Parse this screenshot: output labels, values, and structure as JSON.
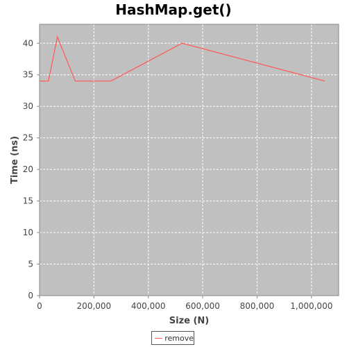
{
  "chart_data": {
    "type": "line",
    "title": "HashMap.get()",
    "xlabel": "Size (N)",
    "ylabel": "Time (ns)",
    "xlim": [
      0,
      1100000
    ],
    "ylim": [
      0,
      43
    ],
    "x_ticks": [
      0,
      200000,
      400000,
      600000,
      800000,
      1000000
    ],
    "x_tick_labels": [
      "0",
      "200,000",
      "400,000",
      "600,000",
      "800,000",
      "1,000,000"
    ],
    "y_ticks": [
      0,
      5,
      10,
      15,
      20,
      25,
      30,
      35,
      40
    ],
    "y_tick_labels": [
      "0",
      "5",
      "10",
      "15",
      "20",
      "25",
      "30",
      "35",
      "40"
    ],
    "grid": true,
    "legend_position": "bottom-center",
    "series": [
      {
        "name": "remove",
        "color": "#ff5555",
        "x": [
          0,
          16384,
          32768,
          65536,
          131072,
          262144,
          524288,
          1048576
        ],
        "y": [
          34,
          34,
          34,
          41,
          34,
          34,
          40,
          34
        ]
      }
    ],
    "plot_background": "#c0c0c0",
    "grid_color": "#ffffff"
  }
}
